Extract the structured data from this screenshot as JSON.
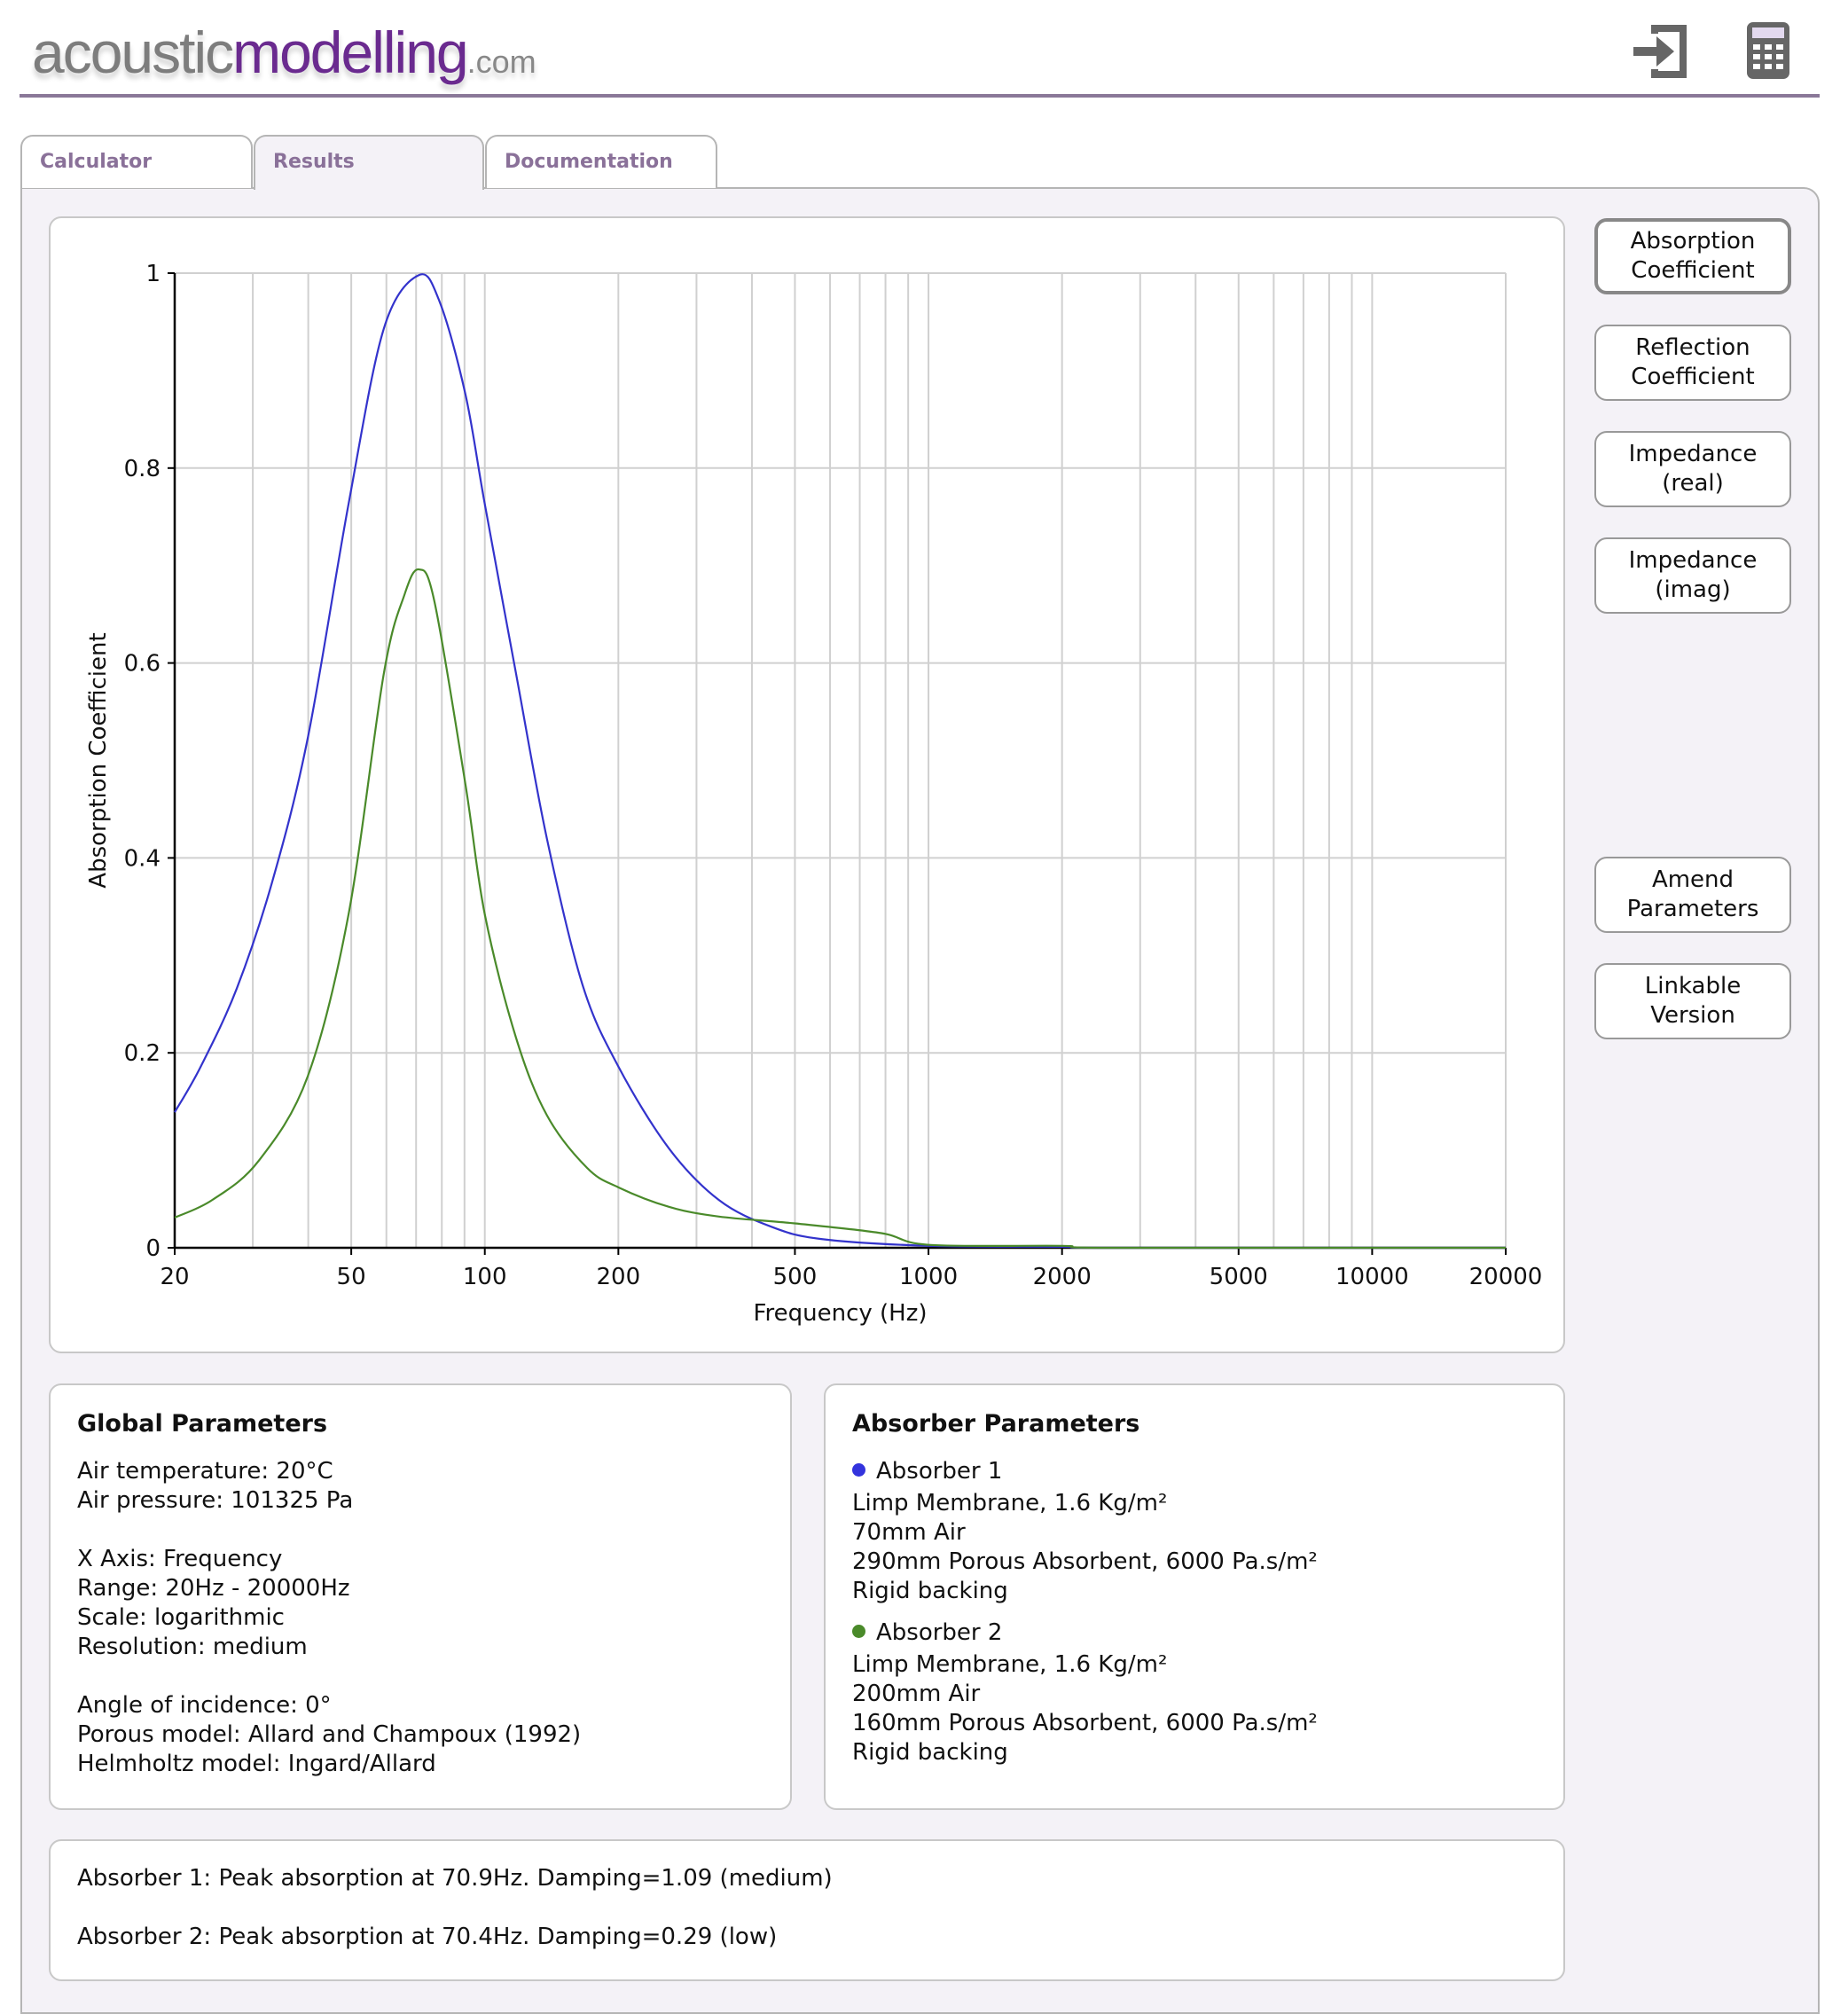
{
  "header": {
    "logo": {
      "part1": "acoustic",
      "part2": "modelling",
      "part3": ".com"
    },
    "icons": [
      "exit-icon",
      "calculator-icon"
    ]
  },
  "tabs": [
    {
      "label": "Calculator",
      "active": false
    },
    {
      "label": "Results",
      "active": true
    },
    {
      "label": "Documentation",
      "active": false
    }
  ],
  "buttons": {
    "absorption": "Absorption\nCoefficient",
    "reflection": "Reflection\nCoefficient",
    "imp_real": "Impedance\n(real)",
    "imp_imag": "Impedance\n(imag)",
    "amend": "Amend\nParameters",
    "linkable": "Linkable\nVersion"
  },
  "chart_data": {
    "type": "line",
    "xlabel": "Frequency (Hz)",
    "ylabel": "Absorption Coefficient",
    "xscale": "log",
    "xlim": [
      20,
      20000
    ],
    "ylim": [
      0,
      1
    ],
    "xticks": [
      20,
      50,
      100,
      200,
      500,
      1000,
      2000,
      5000,
      10000,
      20000
    ],
    "yticks": [
      0,
      0.2,
      0.4,
      0.6,
      0.8,
      1
    ],
    "ytick_labels": [
      "0",
      "0.2",
      "0.4",
      "0.6",
      "0.8",
      "1"
    ],
    "grid": true,
    "legend": "none",
    "series": [
      {
        "color": "#3333cc",
        "points": [
          [
            20,
            0.139
          ],
          [
            22.9,
            0.186
          ],
          [
            27.6,
            0.266
          ],
          [
            33.2,
            0.376
          ],
          [
            39.9,
            0.523
          ],
          [
            49.3,
            0.763
          ],
          [
            59.2,
            0.943
          ],
          [
            71,
            0.998
          ],
          [
            79.2,
            0.97
          ],
          [
            90.4,
            0.876
          ],
          [
            100,
            0.763
          ],
          [
            117.5,
            0.59
          ],
          [
            138,
            0.42
          ],
          [
            166,
            0.27
          ],
          [
            200,
            0.186
          ],
          [
            260,
            0.102
          ],
          [
            337,
            0.049
          ],
          [
            440,
            0.022
          ],
          [
            573,
            0.009
          ],
          [
            1000,
            0.002
          ],
          [
            2000,
            0.001
          ],
          [
            2600,
            0
          ],
          [
            20000,
            0
          ]
        ]
      },
      {
        "color": "#4a8a2a",
        "points": [
          [
            20,
            0.031
          ],
          [
            24.3,
            0.049
          ],
          [
            30.9,
            0.089
          ],
          [
            39.9,
            0.176
          ],
          [
            49.3,
            0.342
          ],
          [
            59.2,
            0.589
          ],
          [
            65.9,
            0.67
          ],
          [
            71,
            0.696
          ],
          [
            77,
            0.663
          ],
          [
            90.4,
            0.476
          ],
          [
            100,
            0.342
          ],
          [
            117.5,
            0.216
          ],
          [
            138,
            0.136
          ],
          [
            170,
            0.082
          ],
          [
            200,
            0.062
          ],
          [
            260,
            0.042
          ],
          [
            337,
            0.032
          ],
          [
            500,
            0.025
          ],
          [
            783,
            0.015
          ],
          [
            1000,
            0.003
          ],
          [
            2000,
            0.002
          ],
          [
            2600,
            0
          ],
          [
            20000,
            0
          ]
        ]
      }
    ]
  },
  "global": {
    "title": "Global Parameters",
    "lines1": "Air temperature: 20°C\nAir pressure: 101325 Pa",
    "lines2": "X Axis: Frequency\nRange: 20Hz - 20000Hz\nScale: logarithmic\nResolution: medium",
    "lines3": "Angle of incidence: 0°\nPorous model: Allard and Champoux (1992)\nHelmholtz model: Ingard/Allard"
  },
  "absorbers": {
    "title": "Absorber Parameters",
    "items": [
      {
        "name": "Absorber 1",
        "color": "#3333dd",
        "details": "Limp Membrane, 1.6 Kg/m²\n70mm Air\n290mm Porous Absorbent, 6000 Pa.s/m²\nRigid backing"
      },
      {
        "name": "Absorber 2",
        "color": "#4a8a2a",
        "details": "Limp Membrane, 1.6 Kg/m²\n200mm Air\n160mm Porous Absorbent, 6000 Pa.s/m²\nRigid backing"
      }
    ]
  },
  "summary": [
    "Absorber 1: Peak absorption at 70.9Hz. Damping=1.09 (medium)",
    "Absorber 2: Peak absorption at 70.4Hz. Damping=0.29 (low)"
  ]
}
